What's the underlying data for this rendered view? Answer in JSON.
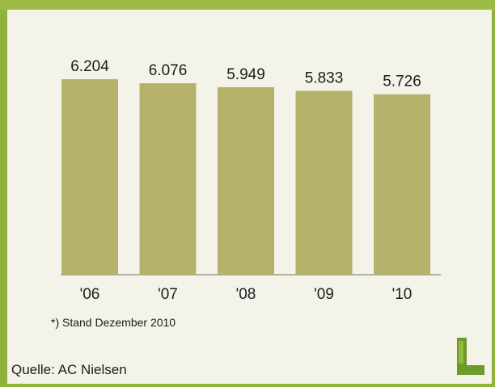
{
  "chart_data": {
    "type": "bar",
    "categories": [
      "'06",
      "'07",
      "'08",
      "'09",
      "'10"
    ],
    "values": [
      6.204,
      6.076,
      5.949,
      5.833,
      5.726
    ],
    "value_labels": [
      "6.204",
      "6.076",
      "5.949",
      "5.833",
      "5.726"
    ],
    "title": "",
    "xlabel": "",
    "ylabel": "",
    "ylim": [
      0,
      6.204
    ],
    "grid": false,
    "bar_color": "#b6b26c"
  },
  "footnote": "*) Stand Dezember 2010",
  "source": "Quelle: AC Nielsen",
  "colors": {
    "frame": "#8fb23c",
    "background": "#f4f3ea"
  },
  "logo_icon": "letter-l-logo-icon"
}
